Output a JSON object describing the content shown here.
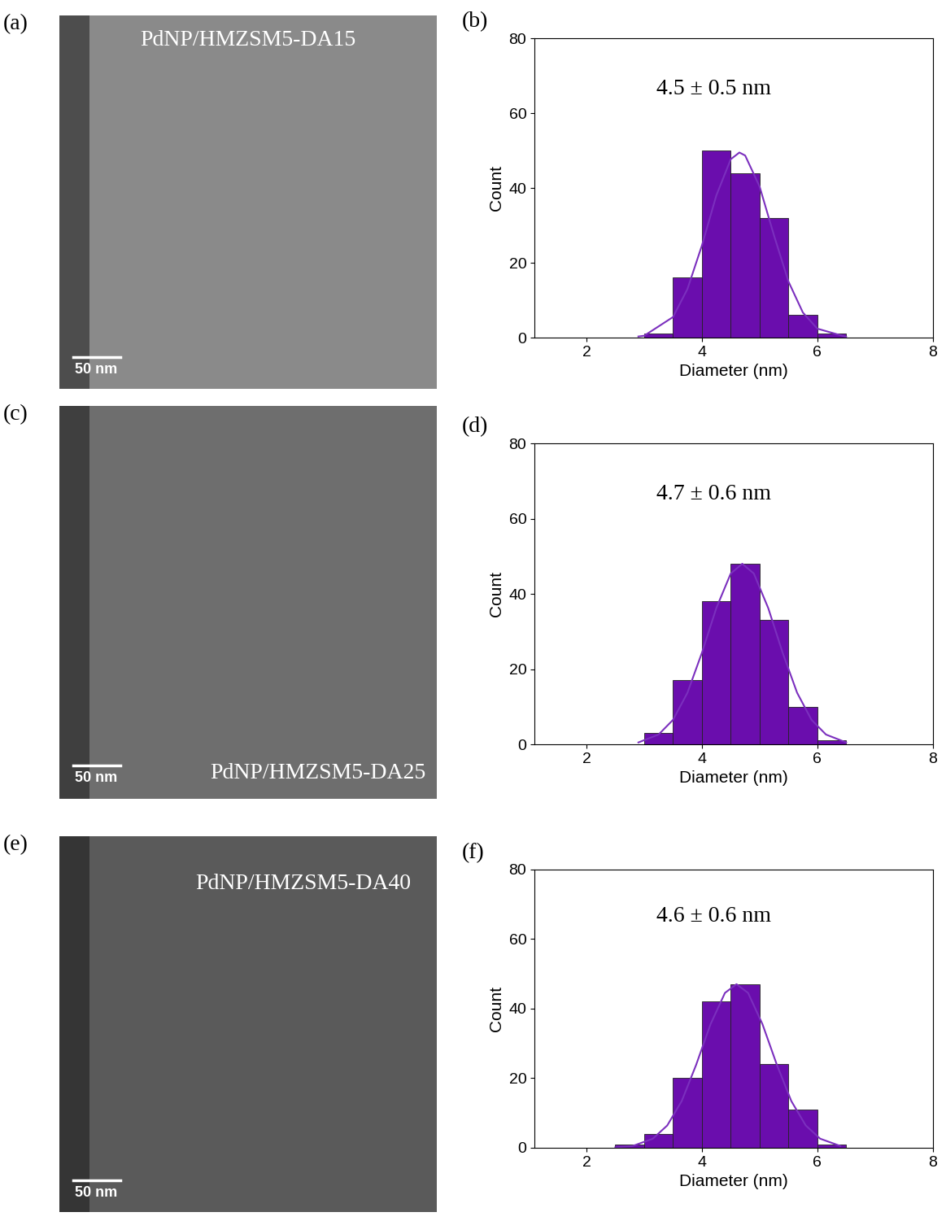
{
  "images": [
    {
      "panel": "(a)",
      "label": "PdNP/HMZSM5-DA15",
      "scale_bar": "50 nm"
    },
    {
      "panel": "(c)",
      "label": "PdNP/HMZSM5-DA25",
      "scale_bar": "50 nm"
    },
    {
      "panel": "(e)",
      "label": "PdNP/HMZSM5-DA40",
      "scale_bar": "50 nm"
    }
  ],
  "chart_data": [
    {
      "type": "histogram",
      "panel": "(b)",
      "annotation": "4.5 ± 0.5 nm",
      "x_label": "Diameter (nm)",
      "y_label": "Count",
      "bins": [
        3.0,
        3.5,
        4.0,
        4.5,
        5.0,
        5.5,
        6.0,
        6.5
      ],
      "counts": [
        1,
        16,
        50,
        44,
        32,
        6,
        1
      ],
      "color": "#6a0dad",
      "series": [
        {
          "type": "line",
          "color": "#7b2fbe",
          "x": [
            2.9,
            3.0,
            3.5,
            3.75,
            4.0,
            4.25,
            4.5,
            4.65,
            4.75,
            5.0,
            5.25,
            5.5,
            5.75,
            6.0,
            6.5
          ],
          "values": [
            0.3,
            0.5,
            5.5,
            13,
            24.6,
            38,
            47.7,
            49.5,
            48.7,
            40.4,
            27.3,
            15,
            6.7,
            2.4,
            0.2
          ]
        }
      ],
      "xlim": [
        1.1,
        8
      ],
      "xticks": [
        2,
        4,
        6,
        8
      ],
      "ylim": [
        0,
        80
      ],
      "yticks": [
        0,
        20,
        40,
        60,
        80
      ]
    },
    {
      "type": "histogram",
      "panel": "(d)",
      "annotation": "4.7 ± 0.6 nm",
      "x_label": "Diameter (nm)",
      "y_label": "Count",
      "bins": [
        3.0,
        3.5,
        4.0,
        4.5,
        5.0,
        5.5,
        6.0,
        6.5
      ],
      "counts": [
        3,
        17,
        38,
        48,
        33,
        10,
        1
      ],
      "color": "#6a0dad",
      "series": [
        {
          "type": "line",
          "color": "#7b2fbe",
          "x": [
            2.9,
            3.25,
            3.5,
            3.75,
            4.0,
            4.25,
            4.5,
            4.7,
            4.9,
            5.15,
            5.4,
            5.65,
            5.9,
            6.15,
            6.5
          ],
          "values": [
            0.5,
            2.6,
            6.5,
            13.7,
            24.3,
            36.2,
            45.4,
            48,
            45.4,
            36.2,
            24.3,
            13.7,
            6.5,
            2.6,
            0.5
          ]
        }
      ],
      "xlim": [
        1.1,
        8
      ],
      "xticks": [
        2,
        4,
        6,
        8
      ],
      "ylim": [
        0,
        80
      ],
      "yticks": [
        0,
        20,
        40,
        60,
        80
      ]
    },
    {
      "type": "histogram",
      "panel": "(f)",
      "annotation": "4.6 ± 0.6 nm",
      "x_label": "Diameter (nm)",
      "y_label": "Count",
      "bins": [
        2.5,
        3.0,
        3.5,
        4.0,
        4.5,
        5.0,
        5.5,
        6.0,
        6.5
      ],
      "counts": [
        1,
        4,
        20,
        42,
        47,
        24,
        11,
        1
      ],
      "color": "#6a0dad",
      "series": [
        {
          "type": "line",
          "color": "#7b2fbe",
          "x": [
            2.5,
            2.8,
            3.15,
            3.4,
            3.65,
            3.9,
            4.15,
            4.4,
            4.6,
            4.8,
            5.05,
            5.3,
            5.55,
            5.8,
            6.05,
            6.4
          ],
          "values": [
            0.1,
            0.5,
            2.6,
            6.4,
            13.4,
            23.8,
            35.5,
            44.5,
            47,
            44.5,
            35.5,
            23.8,
            13.4,
            6.4,
            2.6,
            0.5
          ]
        }
      ],
      "xlim": [
        1.1,
        8
      ],
      "xticks": [
        2,
        4,
        6,
        8
      ],
      "ylim": [
        0,
        80
      ],
      "yticks": [
        0,
        20,
        40,
        60,
        80
      ]
    }
  ]
}
